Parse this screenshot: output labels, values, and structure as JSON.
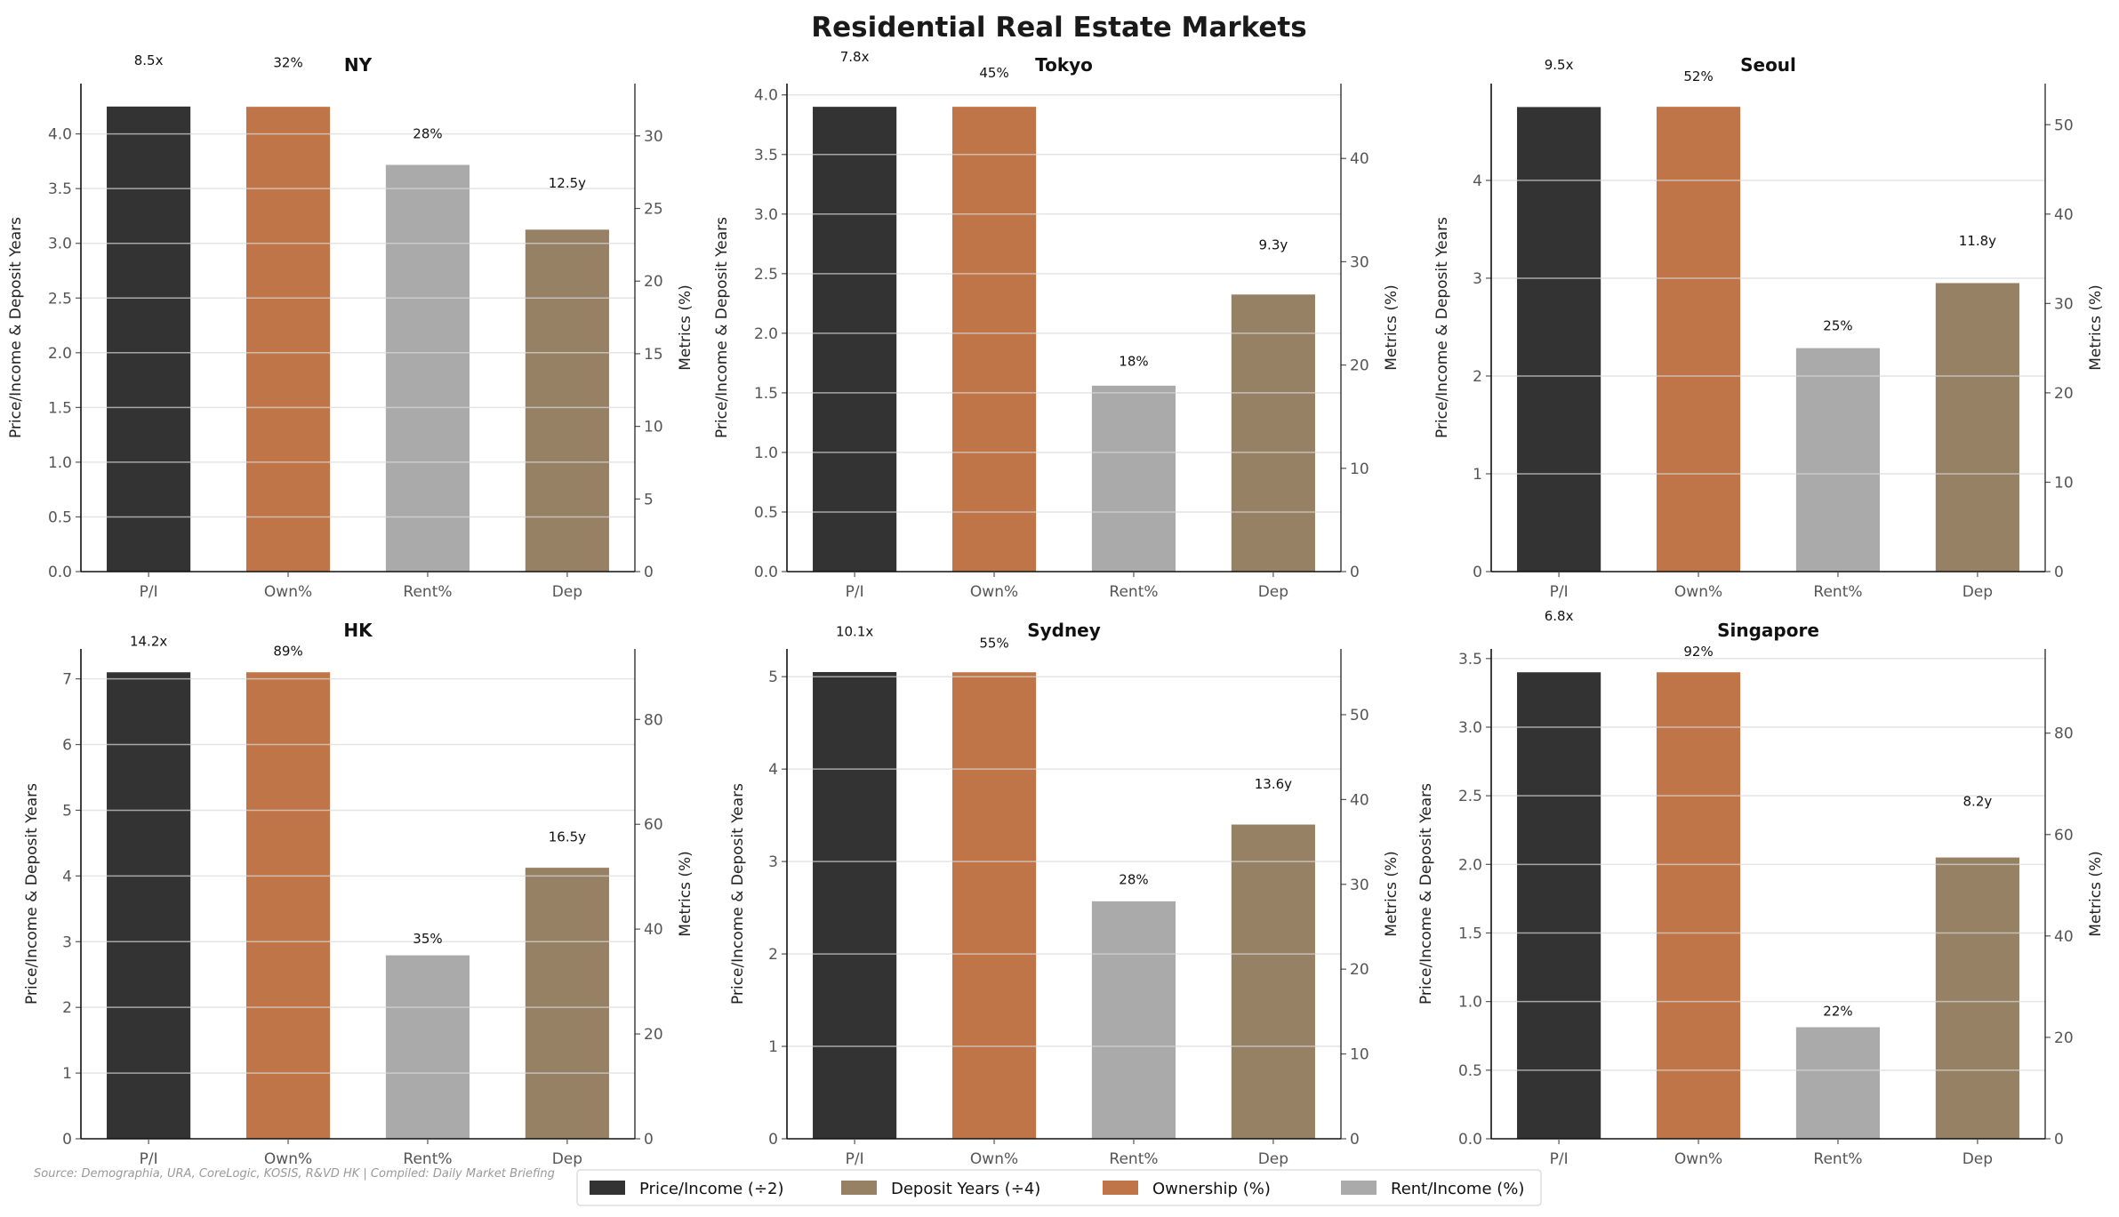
{
  "chart_data": {
    "title": "Residential Real Estate Markets",
    "source": "Source: Demographia, URA, CoreLogic, KOSIS, R&VD HK | Compiled: Daily Market Briefing",
    "legend": {
      "placement": "bottom-center",
      "items": [
        {
          "label": "Price/Income (÷2)",
          "color": "#333333"
        },
        {
          "label": "Deposit Years (÷4)",
          "color": "#978165"
        },
        {
          "label": "Ownership (%)",
          "color": "#c07548"
        },
        {
          "label": "Rent/Income (%)",
          "color": "#aaaaaa"
        }
      ]
    },
    "colors": {
      "pi": "#333333",
      "own": "#c07548",
      "rent": "#aaaaaa",
      "dep": "#978165"
    },
    "ylabel": "Price/Income & Deposit Years",
    "y2label": "Metrics (%)",
    "grid": true,
    "panels": [
      {
        "type": "bar",
        "title": "NY",
        "categories": [
          "P/I",
          "Own%",
          "Rent%",
          "Dep"
        ],
        "values": {
          "price_income": 8.5,
          "ownership": 32,
          "rent_income": 28,
          "deposit_years": 12.5
        },
        "labels": [
          "8.5x",
          "32%",
          "28%",
          "12.5y"
        ],
        "ylim": [
          0,
          4.46
        ],
        "yticks": [
          "0.0",
          "0.5",
          "1.0",
          "1.5",
          "2.0",
          "2.5",
          "3.0",
          "3.5",
          "4.0"
        ],
        "y2lim": [
          0,
          33.6
        ],
        "y2ticks": [
          "0",
          "5",
          "10",
          "15",
          "20",
          "25",
          "30"
        ]
      },
      {
        "type": "bar",
        "title": "Tokyo",
        "categories": [
          "P/I",
          "Own%",
          "Rent%",
          "Dep"
        ],
        "values": {
          "price_income": 7.8,
          "ownership": 45,
          "rent_income": 18,
          "deposit_years": 9.3
        },
        "labels": [
          "7.8x",
          "45%",
          "18%",
          "9.3y"
        ],
        "ylim": [
          0,
          4.095
        ],
        "yticks": [
          "0.0",
          "0.5",
          "1.0",
          "1.5",
          "2.0",
          "2.5",
          "3.0",
          "3.5",
          "4.0"
        ],
        "y2lim": [
          0,
          47.25
        ],
        "y2ticks": [
          "0",
          "10",
          "20",
          "30",
          "40"
        ]
      },
      {
        "type": "bar",
        "title": "Seoul",
        "categories": [
          "P/I",
          "Own%",
          "Rent%",
          "Dep"
        ],
        "values": {
          "price_income": 9.5,
          "ownership": 52,
          "rent_income": 25,
          "deposit_years": 11.8
        },
        "labels": [
          "9.5x",
          "52%",
          "25%",
          "11.8y"
        ],
        "ylim": [
          0,
          4.99
        ],
        "yticks": [
          "0",
          "1",
          "2",
          "3",
          "4"
        ],
        "y2lim": [
          0,
          54.6
        ],
        "y2ticks": [
          "0",
          "10",
          "20",
          "30",
          "40",
          "50"
        ]
      },
      {
        "type": "bar",
        "title": "HK",
        "categories": [
          "P/I",
          "Own%",
          "Rent%",
          "Dep"
        ],
        "values": {
          "price_income": 14.2,
          "ownership": 89,
          "rent_income": 35,
          "deposit_years": 16.5
        },
        "labels": [
          "14.2x",
          "89%",
          "35%",
          "16.5y"
        ],
        "ylim": [
          0,
          7.455
        ],
        "yticks": [
          "0",
          "1",
          "2",
          "3",
          "4",
          "5",
          "6",
          "7"
        ],
        "y2lim": [
          0,
          93.45
        ],
        "y2ticks": [
          "0",
          "20",
          "40",
          "60",
          "80"
        ]
      },
      {
        "type": "bar",
        "title": "Sydney",
        "categories": [
          "P/I",
          "Own%",
          "Rent%",
          "Dep"
        ],
        "values": {
          "price_income": 10.1,
          "ownership": 55,
          "rent_income": 28,
          "deposit_years": 13.6
        },
        "labels": [
          "10.1x",
          "55%",
          "28%",
          "13.6y"
        ],
        "ylim": [
          0,
          5.3
        ],
        "yticks": [
          "0",
          "1",
          "2",
          "3",
          "4",
          "5"
        ],
        "y2lim": [
          0,
          57.75
        ],
        "y2ticks": [
          "0",
          "10",
          "20",
          "30",
          "40",
          "50"
        ]
      },
      {
        "type": "bar",
        "title": "Singapore",
        "categories": [
          "P/I",
          "Own%",
          "Rent%",
          "Dep"
        ],
        "values": {
          "price_income": 6.8,
          "ownership": 92,
          "rent_income": 22,
          "deposit_years": 8.2
        },
        "labels": [
          "6.8x",
          "92%",
          "22%",
          "8.2y"
        ],
        "ylim": [
          0,
          3.57
        ],
        "yticks": [
          "0.0",
          "0.5",
          "1.0",
          "1.5",
          "2.0",
          "2.5",
          "3.0",
          "3.5"
        ],
        "y2lim": [
          0,
          96.6
        ],
        "y2ticks": [
          "0",
          "20",
          "40",
          "60",
          "80"
        ]
      }
    ]
  }
}
